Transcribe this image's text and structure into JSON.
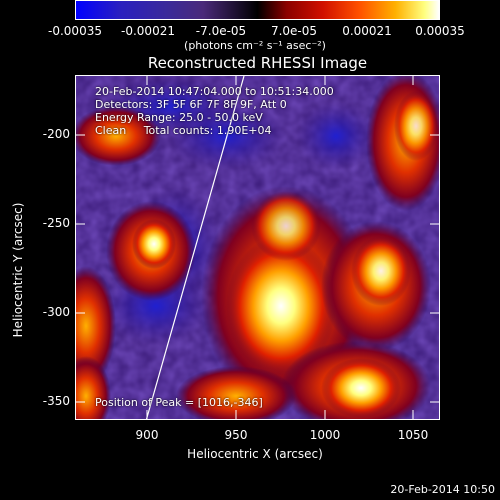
{
  "colorbar": {
    "ticks": [
      "-0.00035",
      "-0.00021",
      "-7.0e-05",
      "7.0e-05",
      "0.00021",
      "0.00035"
    ],
    "units": "(photons cm⁻² s⁻¹ asec⁻²)"
  },
  "title": "Reconstructed RHESSI Image",
  "overlay": {
    "line1": "20-Feb-2014 10:47:04.000 to 10:51:34.000",
    "line2": "Detectors: 3F 5F 6F 7F 8F 9F, Att 0",
    "line3": "Energy Range: 25.0 - 50.0 keV",
    "line4": "Clean     Total counts: 1.90E+04",
    "peak": "Position of Peak = [1016,-346]"
  },
  "axes": {
    "xlabel": "Heliocentric X (arcsec)",
    "ylabel": "Heliocentric Y (arcsec)",
    "xticks": [
      "900",
      "950",
      "1000",
      "1050"
    ],
    "yticks": [
      "-200",
      "-250",
      "-300",
      "-350"
    ]
  },
  "footer": {
    "timestamp": "20-Feb-2014 10:50"
  },
  "colors": {
    "background": "#000000",
    "foreground": "#ffffff"
  }
}
